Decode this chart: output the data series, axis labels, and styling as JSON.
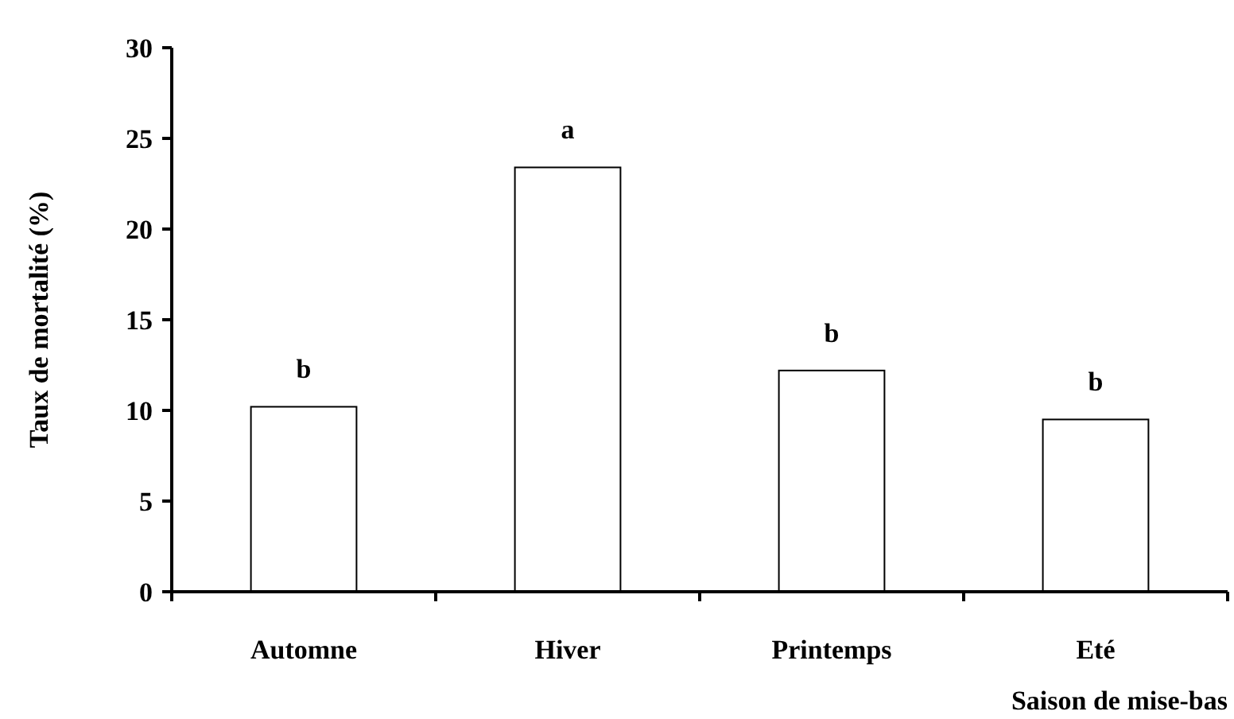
{
  "chart_data": {
    "type": "bar",
    "xlabel": "Saison de mise-bas",
    "ylabel": "Taux de mortalité (%)",
    "categories": [
      "Automne",
      "Hiver",
      "Printemps",
      "Eté"
    ],
    "values": [
      10.2,
      23.4,
      12.2,
      9.5
    ],
    "color": "#ffffff",
    "ylim": [
      0,
      30
    ],
    "yticks": [
      0,
      5,
      10,
      15,
      20,
      25,
      30
    ],
    "grid": false,
    "annotations": [
      {
        "text": "b",
        "x": "Automne",
        "y": 10.2
      },
      {
        "text": "a",
        "x": "Hiver",
        "y": 23.4
      },
      {
        "text": "b",
        "x": "Printemps",
        "y": 12.2
      },
      {
        "text": "b",
        "x": "Eté",
        "y": 9.5
      }
    ]
  }
}
